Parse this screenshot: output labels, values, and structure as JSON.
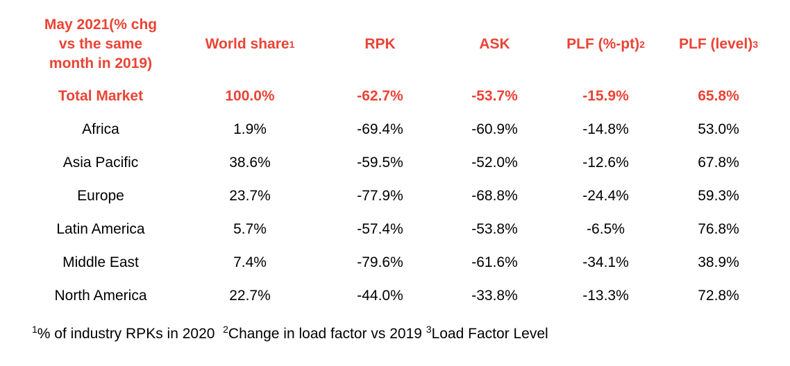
{
  "header": {
    "period_line1": "May 2021(% chg",
    "period_line2": "vs the same",
    "period_line3": "month in 2019)",
    "world_share": "World share",
    "world_share_sup": "1",
    "rpk": "RPK",
    "ask": "ASK",
    "plf_pt": "PLF (%-pt)",
    "plf_pt_sup": "2",
    "plf_level": "PLF (level)",
    "plf_level_sup": "3"
  },
  "colors": {
    "accent": "#ea4335",
    "text": "#000000",
    "background": "#ffffff"
  },
  "rows": [
    {
      "region": "Total Market",
      "world_share": "100.0%",
      "rpk": "-62.7%",
      "ask": "-53.7%",
      "plf_pt": "-15.9%",
      "plf_level": "65.8%"
    },
    {
      "region": "Africa",
      "world_share": "1.9%",
      "rpk": "-69.4%",
      "ask": "-60.9%",
      "plf_pt": "-14.8%",
      "plf_level": "53.0%"
    },
    {
      "region": "Asia Pacific",
      "world_share": "38.6%",
      "rpk": "-59.5%",
      "ask": "-52.0%",
      "plf_pt": "-12.6%",
      "plf_level": "67.8%"
    },
    {
      "region": "Europe",
      "world_share": "23.7%",
      "rpk": "-77.9%",
      "ask": "-68.8%",
      "plf_pt": "-24.4%",
      "plf_level": "59.3%"
    },
    {
      "region": "Latin America",
      "world_share": "5.7%",
      "rpk": "-57.4%",
      "ask": "-53.8%",
      "plf_pt": "-6.5%",
      "plf_level": "76.8%"
    },
    {
      "region": "Middle East",
      "world_share": "7.4%",
      "rpk": "-79.6%",
      "ask": "-61.6%",
      "plf_pt": "-34.1%",
      "plf_level": "38.9%"
    },
    {
      "region": "North America",
      "world_share": "22.7%",
      "rpk": "-44.0%",
      "ask": "-33.8%",
      "plf_pt": "-13.3%",
      "plf_level": "72.8%"
    }
  ],
  "footnotes": {
    "n1_sup": "1",
    "n1_text": "% of industry RPKs in 2020",
    "n2_sup": "2",
    "n2_text": "Change in load factor vs 2019",
    "n3_sup": "3",
    "n3_text": "Load Factor Level"
  }
}
